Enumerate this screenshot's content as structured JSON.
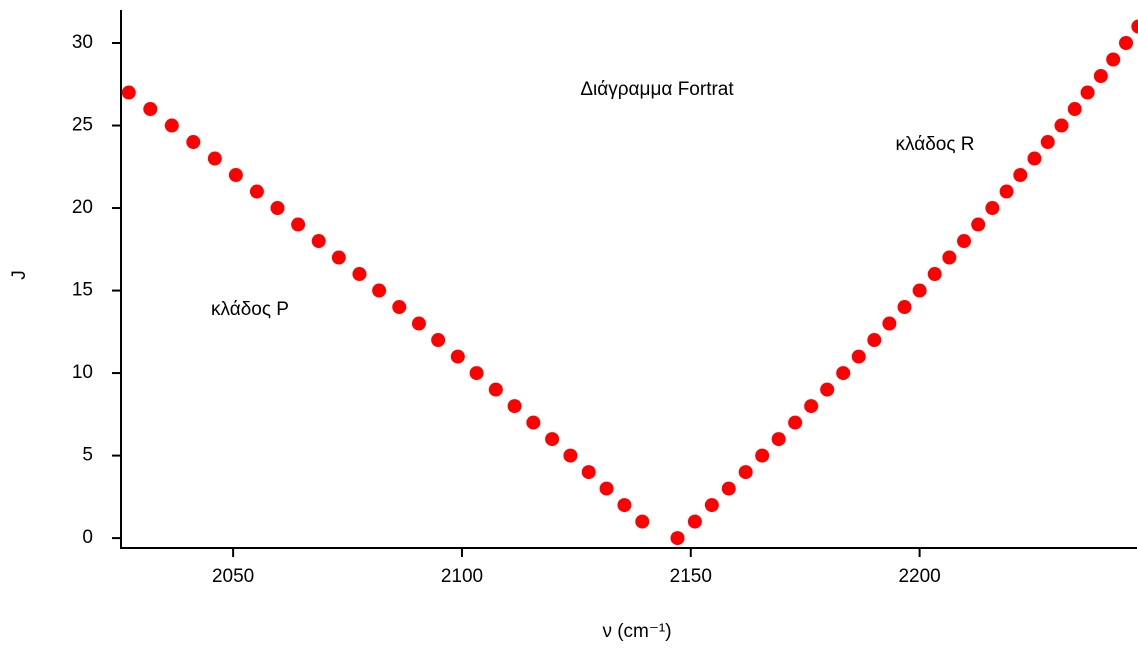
{
  "chart_data": {
    "type": "scatter",
    "title": "Διάγραμμα Fortrat",
    "xlabel": "ν (cm⁻¹)",
    "ylabel": "J",
    "annotations": [
      "κλάδος R",
      "κλάδος P"
    ],
    "color": "#ff0000",
    "x": [
      2027.2,
      2031.9,
      2036.6,
      2041.3,
      2046.0,
      2050.6,
      2055.2,
      2059.7,
      2064.2,
      2068.7,
      2073.1,
      2077.6,
      2081.9,
      2086.3,
      2090.6,
      2094.8,
      2099.1,
      2103.2,
      2107.4,
      2111.5,
      2115.6,
      2119.7,
      2123.7,
      2127.7,
      2131.6,
      2135.5,
      2139.4,
      2147.1,
      2150.9,
      2154.6,
      2158.3,
      2162.0,
      2165.6,
      2169.2,
      2172.8,
      2176.3,
      2179.8,
      2183.3,
      2186.7,
      2190.1,
      2193.4,
      2196.7,
      2200.0,
      2203.3,
      2206.5,
      2209.7,
      2212.8,
      2215.9,
      2219.0,
      2222.0,
      2225.1,
      2228.0,
      2231.0,
      2233.9,
      2236.7,
      2239.6,
      2242.3,
      2245.1,
      2247.8
    ],
    "values": [
      27,
      26,
      25,
      24,
      23,
      22,
      21,
      20,
      19,
      18,
      17,
      16,
      15,
      14,
      13,
      12,
      11,
      10,
      9,
      8,
      7,
      6,
      5,
      4,
      3,
      2,
      1,
      0,
      1,
      2,
      3,
      4,
      5,
      6,
      7,
      8,
      9,
      10,
      11,
      12,
      13,
      14,
      15,
      16,
      17,
      18,
      19,
      20,
      21,
      22,
      23,
      24,
      25,
      26,
      27,
      28,
      29,
      30,
      31
    ],
    "xlim": [
      2025.5,
      2247.5
    ],
    "xticks": [
      2050,
      2100,
      2150,
      2200
    ],
    "ylim": [
      -0.6,
      32
    ],
    "yticks": [
      0,
      5,
      10,
      15,
      20,
      25,
      30
    ]
  }
}
